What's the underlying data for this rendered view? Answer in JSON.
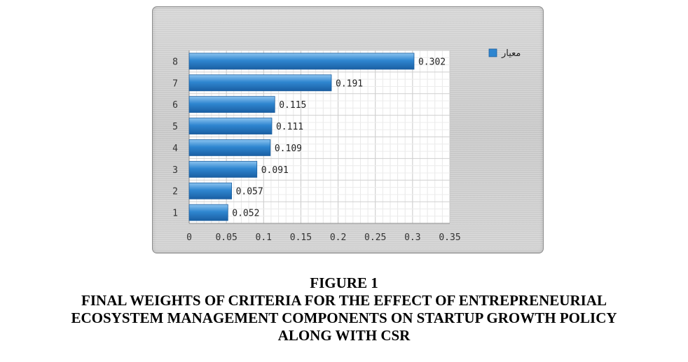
{
  "chart_data": {
    "type": "bar",
    "orientation": "horizontal",
    "categories": [
      "1",
      "2",
      "3",
      "4",
      "5",
      "6",
      "7",
      "8"
    ],
    "series": [
      {
        "name": "معيار",
        "values": [
          0.052,
          0.057,
          0.091,
          0.109,
          0.111,
          0.115,
          0.191,
          0.302
        ]
      }
    ],
    "data_labels": [
      "0.052",
      "0.057",
      "0.091",
      "0.109",
      "0.111",
      "0.115",
      "0.191",
      "0.302"
    ],
    "x_ticks": [
      "0",
      "0.05",
      "0.1",
      "0.15",
      "0.2",
      "0.25",
      "0.3",
      "0.35"
    ],
    "xlim": [
      0,
      0.35
    ],
    "grid": true,
    "legend_position": "top-right",
    "bar_color": "#2f86d0"
  },
  "caption": {
    "label": "FIGURE 1",
    "line1": "FINAL WEIGHTS OF CRITERIA FOR THE EFFECT OF ENTREPRENEURIAL",
    "line2": "ECOSYSTEM MANAGEMENT COMPONENTS ON STARTUP GROWTH POLICY",
    "line3": "ALONG WITH CSR"
  }
}
